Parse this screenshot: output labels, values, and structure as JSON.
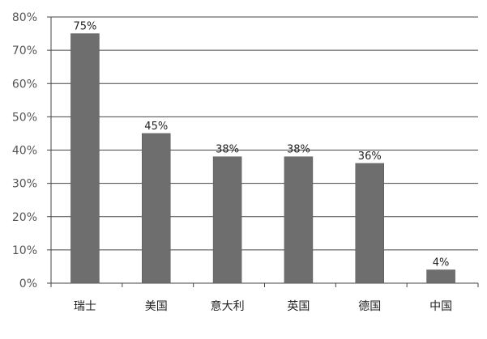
{
  "chart_data": {
    "type": "bar",
    "categories": [
      "瑞士",
      "美国",
      "意大利",
      "英国",
      "德国",
      "中国"
    ],
    "values": [
      75,
      45,
      38,
      38,
      36,
      4
    ],
    "data_labels": [
      "75%",
      "45%",
      "38%",
      "38%",
      "36%",
      "4%"
    ],
    "title": "",
    "xlabel": "",
    "ylabel": "",
    "ylim": [
      0,
      80
    ],
    "yticks": [
      0,
      10,
      20,
      30,
      40,
      50,
      60,
      70,
      80
    ],
    "ytick_labels": [
      "0%",
      "10%",
      "20%",
      "30%",
      "40%",
      "50%",
      "60%",
      "70%",
      "80%"
    ],
    "grid": true,
    "legend": "none",
    "bar_color": "#6e6e6e"
  }
}
